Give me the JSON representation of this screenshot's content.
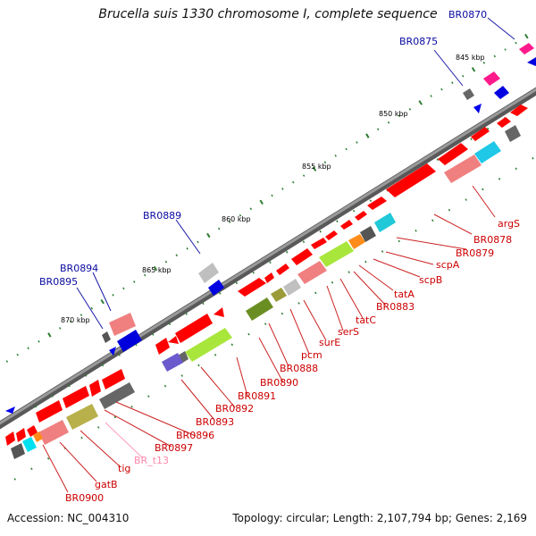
{
  "title": "Brucella suis 1330 chromosome I, complete sequence",
  "footer": {
    "accession": "Accession: NC_004310",
    "stats": "Topology: circular; Length: 2,107,794 bp; Genes: 2,169"
  },
  "colors": {
    "backbone": "#808080",
    "forward_gene": "#ff0000",
    "reverse_gene": "#0000ff",
    "label_red": "#cc0000",
    "label_blue": "#000099",
    "label_pink": "#ff88aa",
    "tick": "#2e7d32"
  },
  "ruler_labels": [
    "845 kbp",
    "850 kbp",
    "855 kbp",
    "860 kbp",
    "865 kbp",
    "870 kbp"
  ],
  "gene_labels": {
    "top": [
      "BR0870",
      "BR0875",
      "BR0889",
      "BR0894",
      "BR0895"
    ],
    "bottom": [
      "argS",
      "BR0878",
      "BR0879",
      "scpA",
      "scpB",
      "tatA",
      "BR0883",
      "tatC",
      "serS",
      "surE",
      "pcm",
      "BR0888",
      "BR0890",
      "BR0891",
      "BR0892",
      "BR0893",
      "BR0896",
      "BR0897",
      "BR_t13",
      "tig",
      "gatB",
      "BR0900"
    ]
  }
}
